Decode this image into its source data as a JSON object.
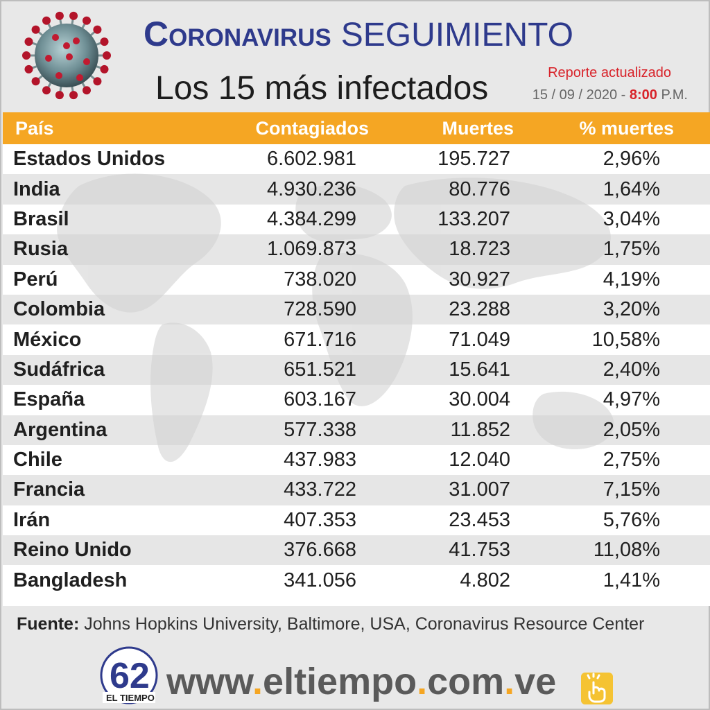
{
  "header": {
    "title_main": "Coronavirus",
    "title_sub": "SEGUIMIENTO",
    "subtitle": "Los 15 más infectados",
    "report_label": "Reporte actualizado",
    "report_date": "15 / 09 / 2020 -",
    "report_time": "8:00",
    "report_ampm": "P.M."
  },
  "table": {
    "headers": [
      "País",
      "Contagiados",
      "Muertes",
      "% muertes"
    ],
    "rows": [
      [
        "Estados Unidos",
        "6.602.981",
        "195.727",
        "2,96%"
      ],
      [
        "India",
        "4.930.236",
        "80.776",
        "1,64%"
      ],
      [
        "Brasil",
        "4.384.299",
        "133.207",
        "3,04%"
      ],
      [
        "Rusia",
        "1.069.873",
        "18.723",
        "1,75%"
      ],
      [
        "Perú",
        "738.020",
        "30.927",
        "4,19%"
      ],
      [
        "Colombia",
        "728.590",
        "23.288",
        "3,20%"
      ],
      [
        "México",
        "671.716",
        "71.049",
        "10,58%"
      ],
      [
        "Sudáfrica",
        "651.521",
        "15.641",
        "2,40%"
      ],
      [
        "España",
        "603.167",
        "30.004",
        "4,97%"
      ],
      [
        "Argentina",
        "577.338",
        "11.852",
        "2,05%"
      ],
      [
        "Chile",
        "437.983",
        "12.040",
        "2,75%"
      ],
      [
        "Francia",
        "433.722",
        "31.007",
        "7,15%"
      ],
      [
        "Irán",
        "407.353",
        "23.453",
        "5,76%"
      ],
      [
        "Reino Unido",
        "376.668",
        "41.753",
        "11,08%"
      ],
      [
        "Bangladesh",
        "341.056",
        "4.802",
        "1,41%"
      ]
    ]
  },
  "source": {
    "label": "Fuente:",
    "text": "Johns Hopkins University, Baltimore, USA, Coronavirus Resource Center"
  },
  "footer": {
    "logo_number": "62",
    "logo_name": "EL TIEMPO",
    "url_parts": [
      "www",
      ".",
      "eltiempo",
      ".",
      "com",
      ".",
      "ve"
    ]
  },
  "colors": {
    "header_bar": "#f5a623",
    "title_blue": "#2e3a8c",
    "report_red": "#d8232a"
  },
  "icons": [
    "coronavirus-icon",
    "eltiempo-logo",
    "hand-pointer-icon",
    "world-map-background"
  ]
}
